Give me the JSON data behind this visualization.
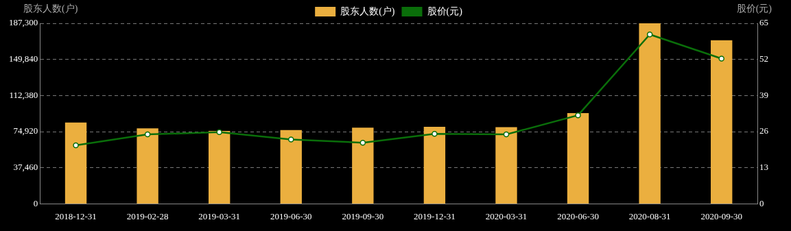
{
  "chart_data": {
    "type": "bar",
    "ylabel": "股东人数(户)",
    "y2label": "股价(元)",
    "categories": [
      "2018-12-31",
      "2019-02-28",
      "2019-03-31",
      "2019-06-30",
      "2019-09-30",
      "2019-12-31",
      "2020-03-31",
      "2020-06-30",
      "2020-08-31",
      "2020-09-30"
    ],
    "series": [
      {
        "name": "股东人数(户)",
        "color": "#ebaf3f",
        "values": [
          84400,
          78300,
          75600,
          76500,
          79100,
          80000,
          79600,
          94100,
          187300,
          169700
        ]
      },
      {
        "name": "股价(元)",
        "type": "line",
        "axis": "y2",
        "color": "#0a6e0a",
        "marker": "circle",
        "values": [
          21.1,
          25.0,
          25.8,
          23.2,
          22.0,
          25.2,
          25.0,
          31.9,
          61.0,
          52.3
        ]
      }
    ],
    "ylim": [
      0,
      187300
    ],
    "yticks": [
      0,
      {
        "value": 37460,
        "label": "37,460"
      },
      {
        "value": 74920,
        "label": "74,920"
      },
      {
        "value": 112380,
        "label": "112,380"
      },
      {
        "value": 149840,
        "label": "149,840"
      },
      {
        "value": 187300,
        "label": "187,300"
      }
    ],
    "y2lim": [
      0,
      65
    ],
    "y2ticks": [
      0,
      13,
      26,
      39,
      52,
      65
    ],
    "grid": "y",
    "legend": "top"
  }
}
